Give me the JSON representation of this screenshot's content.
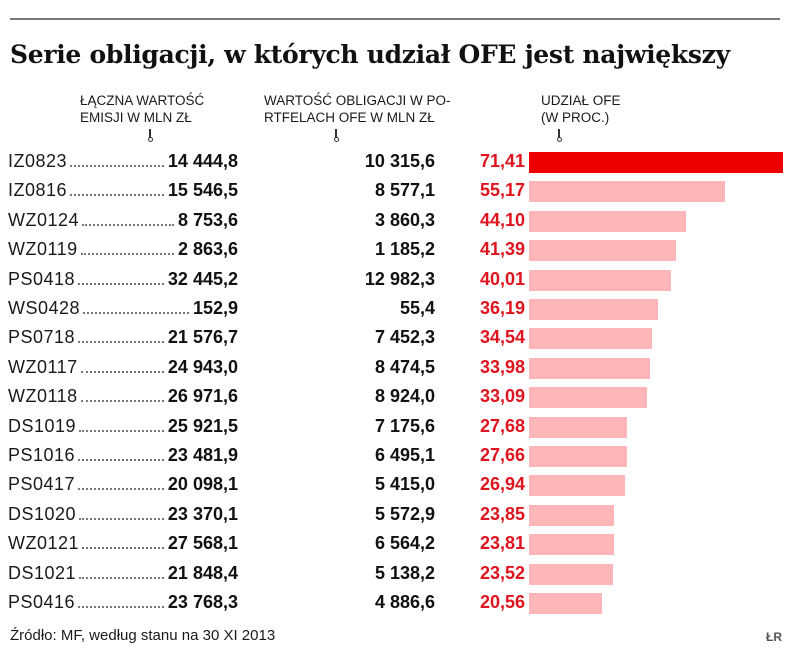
{
  "title": "Serie obligacji, w których udział OFE jest największy",
  "columns": {
    "emission": "ŁĄCZNA WARTOŚĆ\nEMISJI W MLN ZŁ",
    "portfolio": "WARTOŚĆ OBLIGACJI W PO-\nRTFELACH OFE W MLN ZŁ",
    "share": "UDZIAŁ OFE\n(W PROC.)"
  },
  "colors": {
    "highlight_bar": "#ee0000",
    "bar": "#ffb6b9",
    "share_text": "#e0141e"
  },
  "chart_data": {
    "type": "table",
    "columns": [
      "ŁĄCZNA WARTOŚĆ EMISJI W MLN ZŁ",
      "WARTOŚĆ OBLIGACJI W PORTFELACH OFE W MLN ZŁ",
      "UDZIAŁ OFE (W PROC.)"
    ],
    "bar_column": "UDZIAŁ OFE (W PROC.)",
    "bar_max": 71.41,
    "rows": [
      {
        "code": "IZ0823",
        "emission": "14 444,8",
        "portfolio": "10 315,6",
        "share": "71,41",
        "share_value": 71.41
      },
      {
        "code": "IZ0816",
        "emission": "15 546,5",
        "portfolio": "8 577,1",
        "share": "55,17",
        "share_value": 55.17
      },
      {
        "code": "WZ0124",
        "emission": "8 753,6",
        "portfolio": "3 860,3",
        "share": "44,10",
        "share_value": 44.1
      },
      {
        "code": "WZ0119",
        "emission": "2 863,6",
        "portfolio": "1 185,2",
        "share": "41,39",
        "share_value": 41.39
      },
      {
        "code": "PS0418",
        "emission": "32 445,2",
        "portfolio": "12 982,3",
        "share": "40,01",
        "share_value": 40.01
      },
      {
        "code": "WS0428",
        "emission": "152,9",
        "portfolio": "55,4",
        "share": "36,19",
        "share_value": 36.19
      },
      {
        "code": "PS0718",
        "emission": "21 576,7",
        "portfolio": "7 452,3",
        "share": "34,54",
        "share_value": 34.54
      },
      {
        "code": "WZ0117",
        "emission": "24 943,0",
        "portfolio": "8 474,5",
        "share": "33,98",
        "share_value": 33.98
      },
      {
        "code": "WZ0118",
        "emission": "26 971,6",
        "portfolio": "8 924,0",
        "share": "33,09",
        "share_value": 33.09
      },
      {
        "code": "DS1019",
        "emission": "25 921,5",
        "portfolio": "7 175,6",
        "share": "27,68",
        "share_value": 27.68
      },
      {
        "code": "PS1016",
        "emission": "23 481,9",
        "portfolio": "6 495,1",
        "share": "27,66",
        "share_value": 27.66
      },
      {
        "code": "PS0417",
        "emission": "20 098,1",
        "portfolio": "5 415,0",
        "share": "26,94",
        "share_value": 26.94
      },
      {
        "code": "DS1020",
        "emission": "23 370,1",
        "portfolio": "5 572,9",
        "share": "23,85",
        "share_value": 23.85
      },
      {
        "code": "WZ0121",
        "emission": "27 568,1",
        "portfolio": "6 564,2",
        "share": "23,81",
        "share_value": 23.81
      },
      {
        "code": "DS1021",
        "emission": "21 848,4",
        "portfolio": "5 138,2",
        "share": "23,52",
        "share_value": 23.52
      },
      {
        "code": "PS0416",
        "emission": "23 768,3",
        "portfolio": "4 886,6",
        "share": "20,56",
        "share_value": 20.56
      }
    ]
  },
  "source": "Źródło: MF, według stanu na 30 XI 2013",
  "logo_text": "ŁR"
}
